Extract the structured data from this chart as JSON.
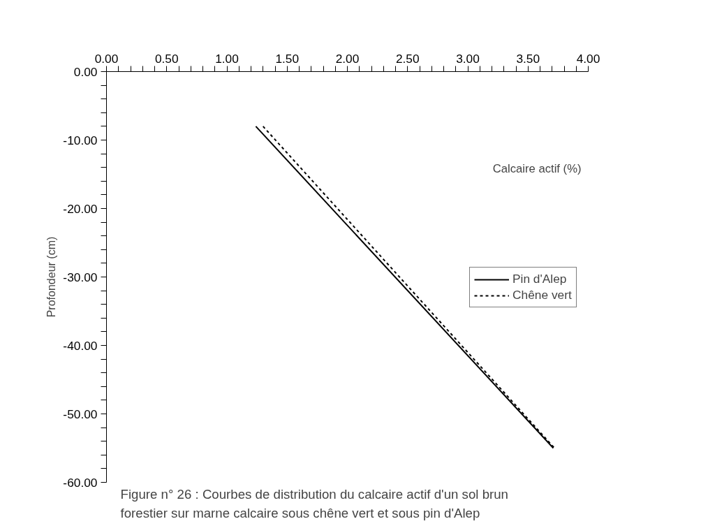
{
  "chart_data": {
    "type": "line",
    "xlabel": "Calcaire actif (%)",
    "ylabel": "Profondeur (cm)",
    "annotations": [
      "Figure n° 26 : Courbes de distribution du calcaire actif d'un sol brun\nforestier sur marne calcaire  sous chêne vert et sous pin d'Alep"
    ],
    "series": [
      {
        "name": "Pin d'Alep",
        "color": "#000000",
        "line_style": "solid",
        "x": [
          1.24,
          3.71
        ],
        "values": [
          -8,
          -55
        ]
      },
      {
        "name": "Chêne vert",
        "color": "#000000",
        "line_style": "dashed",
        "x": [
          1.3,
          3.72
        ],
        "values": [
          -8,
          -55
        ]
      }
    ],
    "xlim": [
      0,
      4
    ],
    "ylim": [
      -60,
      0
    ],
    "xticks": [
      {
        "value": 0,
        "label": "0.00"
      },
      {
        "value": 0.5,
        "label": "0.50"
      },
      {
        "value": 1,
        "label": "1.00"
      },
      {
        "value": 1.5,
        "label": "1.50"
      },
      {
        "value": 2,
        "label": "2.00"
      },
      {
        "value": 2.5,
        "label": "2.50"
      },
      {
        "value": 3,
        "label": "3.00"
      },
      {
        "value": 3.5,
        "label": "3.50"
      },
      {
        "value": 4,
        "label": "4.00"
      }
    ],
    "yticks": [
      {
        "value": 0,
        "label": "0.00"
      },
      {
        "value": -10,
        "label": "-10.00"
      },
      {
        "value": -20,
        "label": "-20.00"
      },
      {
        "value": -30,
        "label": "-30.00"
      },
      {
        "value": -40,
        "label": "-40.00"
      },
      {
        "value": -50,
        "label": "-50.00"
      },
      {
        "value": -60,
        "label": "-60.00"
      }
    ],
    "grid": false,
    "legend": "right",
    "marker": "none"
  }
}
